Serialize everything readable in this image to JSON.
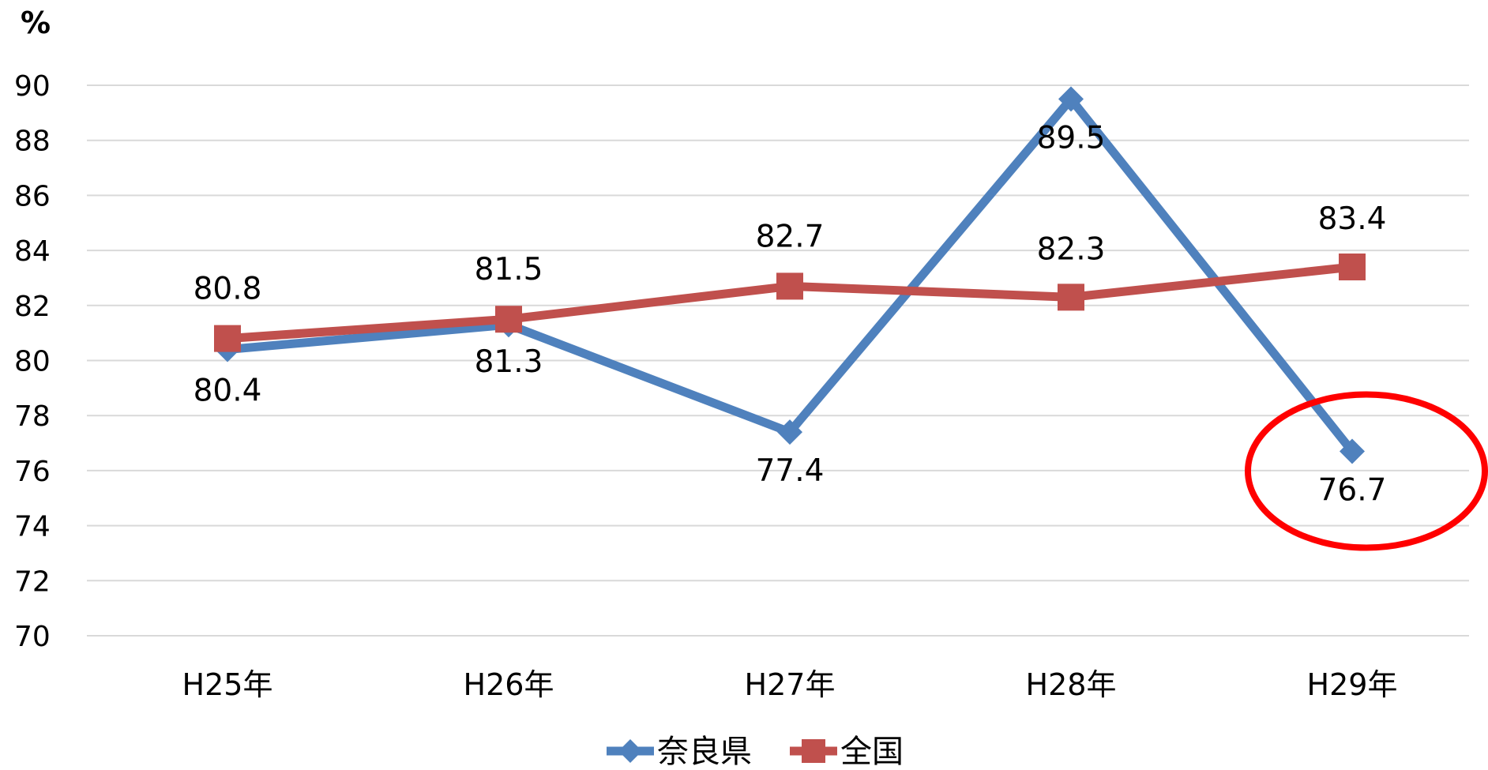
{
  "chart_data": {
    "type": "line",
    "title": "",
    "yunit": "%",
    "categories": [
      "H25年",
      "H26年",
      "H27年",
      "H28年",
      "H29年"
    ],
    "ylim": [
      70,
      90
    ],
    "yticks": [
      "70",
      "72",
      "74",
      "76",
      "78",
      "80",
      "82",
      "84",
      "86",
      "88",
      "90"
    ],
    "grid": true,
    "legend_position": "bottom",
    "series": [
      {
        "name": "奈良県",
        "values": [
          80.4,
          81.3,
          77.4,
          89.5,
          76.7
        ],
        "labels": [
          "80.4",
          "81.3",
          "77.4",
          "89.5",
          "76.7"
        ],
        "color": "#4f81bd",
        "marker": "diamond"
      },
      {
        "name": "全国",
        "values": [
          80.8,
          81.5,
          82.7,
          82.3,
          83.4
        ],
        "labels": [
          "80.8",
          "81.5",
          "82.7",
          "82.3",
          "83.4"
        ],
        "color": "#c0504d",
        "marker": "square"
      }
    ],
    "annotation": {
      "shape": "ellipse",
      "target": "H29年",
      "color": "#ff0000"
    },
    "gridline_color": "#d9d9d9"
  }
}
